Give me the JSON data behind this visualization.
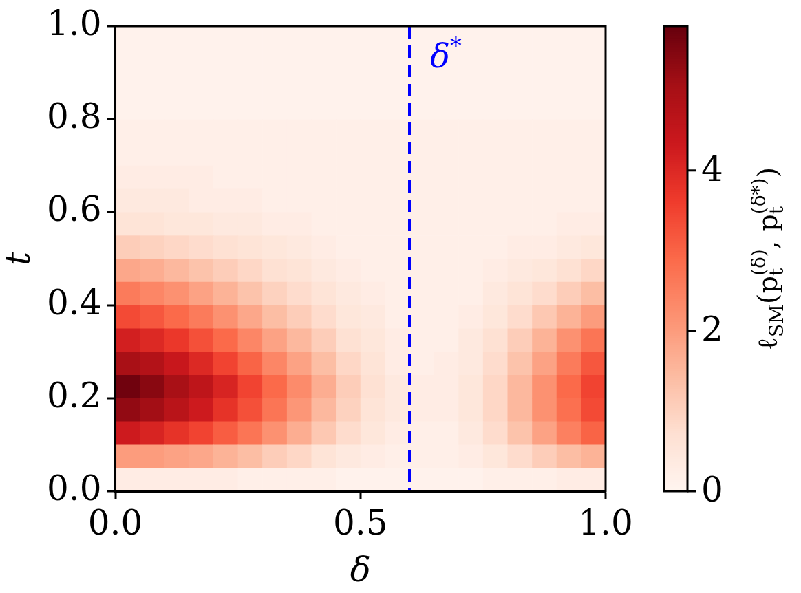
{
  "chart_data": {
    "type": "heatmap",
    "xlabel": "δ",
    "ylabel": "t",
    "clabel": "ℓ$_{SM}$(p$_{t}$$^{(δ)}$, p$_{t}$$^{(δ*)}$)",
    "x": [
      0.025,
      0.075,
      0.125,
      0.175,
      0.225,
      0.275,
      0.325,
      0.375,
      0.425,
      0.475,
      0.525,
      0.575,
      0.625,
      0.675,
      0.725,
      0.775,
      0.825,
      0.875,
      0.925,
      0.975
    ],
    "y": [
      0.975,
      0.925,
      0.875,
      0.825,
      0.775,
      0.725,
      0.675,
      0.625,
      0.575,
      0.525,
      0.475,
      0.425,
      0.375,
      0.325,
      0.275,
      0.225,
      0.175,
      0.125,
      0.075,
      0.025
    ],
    "cells": [
      [
        0.1,
        0.1,
        0.1,
        0.1,
        0.1,
        0.1,
        0.1,
        0.1,
        0.1,
        0.1,
        0.1,
        0.1,
        0.1,
        0.1,
        0.1,
        0.1,
        0.1,
        0.1,
        0.1,
        0.1
      ],
      [
        0.1,
        0.1,
        0.1,
        0.1,
        0.1,
        0.1,
        0.1,
        0.1,
        0.1,
        0.1,
        0.1,
        0.1,
        0.1,
        0.1,
        0.1,
        0.1,
        0.1,
        0.1,
        0.1,
        0.1
      ],
      [
        0.1,
        0.1,
        0.1,
        0.1,
        0.1,
        0.1,
        0.1,
        0.1,
        0.1,
        0.1,
        0.1,
        0.1,
        0.1,
        0.1,
        0.1,
        0.1,
        0.1,
        0.1,
        0.1,
        0.1
      ],
      [
        0.1,
        0.1,
        0.1,
        0.1,
        0.1,
        0.1,
        0.1,
        0.1,
        0.1,
        0.1,
        0.1,
        0.1,
        0.1,
        0.1,
        0.1,
        0.1,
        0.1,
        0.1,
        0.1,
        0.1
      ],
      [
        0.2,
        0.2,
        0.2,
        0.2,
        0.2,
        0.2,
        0.2,
        0.2,
        0.2,
        0.2,
        0.2,
        0.2,
        0.2,
        0.2,
        0.2,
        0.2,
        0.2,
        0.2,
        0.2,
        0.2
      ],
      [
        0.2,
        0.2,
        0.2,
        0.2,
        0.2,
        0.2,
        0.2,
        0.2,
        0.2,
        0.2,
        0.2,
        0.2,
        0.2,
        0.2,
        0.2,
        0.2,
        0.2,
        0.2,
        0.2,
        0.2
      ],
      [
        0.3,
        0.3,
        0.3,
        0.3,
        0.2,
        0.2,
        0.2,
        0.2,
        0.2,
        0.2,
        0.2,
        0.2,
        0.2,
        0.2,
        0.2,
        0.2,
        0.2,
        0.2,
        0.2,
        0.2
      ],
      [
        0.4,
        0.4,
        0.4,
        0.3,
        0.3,
        0.3,
        0.2,
        0.2,
        0.2,
        0.2,
        0.2,
        0.2,
        0.2,
        0.2,
        0.2,
        0.2,
        0.2,
        0.2,
        0.2,
        0.2
      ],
      [
        0.6,
        0.6,
        0.5,
        0.5,
        0.4,
        0.4,
        0.3,
        0.3,
        0.2,
        0.2,
        0.2,
        0.2,
        0.2,
        0.2,
        0.2,
        0.2,
        0.2,
        0.2,
        0.3,
        0.3
      ],
      [
        1.1,
        1.0,
        0.9,
        0.8,
        0.7,
        0.6,
        0.5,
        0.4,
        0.3,
        0.2,
        0.2,
        0.2,
        0.2,
        0.2,
        0.2,
        0.2,
        0.3,
        0.3,
        0.4,
        0.5
      ],
      [
        1.8,
        1.7,
        1.5,
        1.3,
        1.1,
        0.9,
        0.7,
        0.6,
        0.4,
        0.3,
        0.2,
        0.2,
        0.2,
        0.2,
        0.2,
        0.3,
        0.4,
        0.5,
        0.7,
        0.9
      ],
      [
        2.6,
        2.4,
        2.2,
        1.9,
        1.6,
        1.3,
        1.0,
        0.8,
        0.6,
        0.4,
        0.3,
        0.2,
        0.2,
        0.2,
        0.2,
        0.4,
        0.6,
        0.8,
        1.1,
        1.4
      ],
      [
        3.4,
        3.2,
        2.9,
        2.6,
        2.2,
        1.8,
        1.4,
        1.1,
        0.8,
        0.5,
        0.4,
        0.2,
        0.2,
        0.2,
        0.3,
        0.5,
        0.8,
        1.2,
        1.6,
        2.0
      ],
      [
        4.2,
        4.0,
        3.7,
        3.3,
        2.9,
        2.4,
        1.9,
        1.5,
        1.1,
        0.7,
        0.5,
        0.3,
        0.2,
        0.2,
        0.4,
        0.7,
        1.1,
        1.6,
        2.2,
        2.7
      ],
      [
        5.0,
        4.8,
        4.4,
        4.0,
        3.5,
        3.0,
        2.4,
        1.9,
        1.4,
        0.9,
        0.6,
        0.3,
        0.2,
        0.3,
        0.4,
        0.8,
        1.3,
        1.9,
        2.6,
        3.2
      ],
      [
        5.7,
        5.4,
        5.0,
        4.6,
        4.1,
        3.5,
        2.9,
        2.3,
        1.7,
        1.1,
        0.7,
        0.4,
        0.3,
        0.3,
        0.5,
        0.9,
        1.5,
        2.2,
        2.9,
        3.5
      ],
      [
        5.3,
        5.1,
        4.7,
        4.3,
        3.8,
        3.3,
        2.7,
        2.1,
        1.5,
        1.0,
        0.6,
        0.4,
        0.3,
        0.3,
        0.5,
        0.9,
        1.5,
        2.2,
        2.8,
        3.4
      ],
      [
        4.3,
        4.1,
        3.8,
        3.5,
        3.1,
        2.7,
        2.2,
        1.7,
        1.2,
        0.8,
        0.5,
        0.3,
        0.2,
        0.2,
        0.4,
        0.8,
        1.3,
        1.9,
        2.5,
        3.0
      ],
      [
        2.0,
        2.0,
        1.9,
        1.8,
        1.6,
        1.4,
        1.1,
        0.9,
        0.6,
        0.4,
        0.3,
        0.2,
        0.2,
        0.2,
        0.3,
        0.5,
        0.8,
        1.1,
        1.4,
        1.6
      ],
      [
        0.3,
        0.3,
        0.3,
        0.3,
        0.3,
        0.2,
        0.2,
        0.2,
        0.2,
        0.1,
        0.1,
        0.1,
        0.1,
        0.1,
        0.1,
        0.2,
        0.2,
        0.2,
        0.3,
        0.3
      ]
    ],
    "xlim": [
      0,
      1
    ],
    "ylim": [
      0,
      1
    ],
    "xticks": [
      {
        "value": 0,
        "label": "0.0"
      },
      {
        "value": 0.5,
        "label": "0.5"
      },
      {
        "value": 1,
        "label": "1.0"
      }
    ],
    "yticks": [
      {
        "value": 0,
        "label": "0.0"
      },
      {
        "value": 0.2,
        "label": "0.2"
      },
      {
        "value": 0.4,
        "label": "0.4"
      },
      {
        "value": 0.6,
        "label": "0.6"
      },
      {
        "value": 0.8,
        "label": "0.8"
      },
      {
        "value": 1,
        "label": "1.0"
      }
    ],
    "clim": [
      0,
      5.8
    ],
    "cticks": [
      0,
      2,
      4
    ],
    "ref_lines": [
      {
        "axis": "x",
        "value": 0.6,
        "label": "δ$^{*}$",
        "color": "#0000ff",
        "line_style": "dashed"
      }
    ]
  }
}
